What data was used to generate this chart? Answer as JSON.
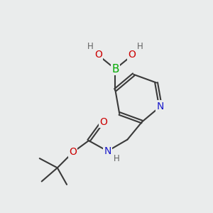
{
  "bg_color": "#eaecec",
  "bond_color": "#3a3a3a",
  "bond_width": 1.5,
  "atom_colors": {
    "B": "#00aa00",
    "N_py": "#1a1acc",
    "N_nh": "#1a1acc",
    "O": "#cc0000",
    "H": "#606060"
  },
  "font_size_atom": 10,
  "font_size_H": 8.5,
  "font_size_N": 10
}
